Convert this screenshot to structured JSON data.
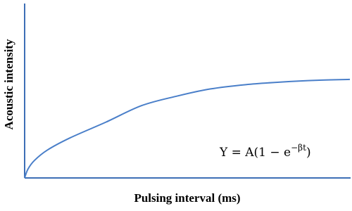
{
  "chart_data": {
    "type": "line",
    "x_label": "Pulsing interval (ms)",
    "y_label": "Acoustic intensity",
    "annotation": {
      "base": "Y = A(1 − e",
      "exponent": "−βt",
      "close": ")"
    },
    "x": [
      0,
      1,
      3,
      7,
      14,
      25,
      36,
      47,
      57,
      68,
      79,
      90,
      100
    ],
    "values": [
      0,
      5,
      10,
      16,
      23,
      32,
      41.5,
      47,
      51,
      53.5,
      55,
      56,
      56.5
    ],
    "color": "#4a7fc9",
    "xlim": [
      0,
      100
    ],
    "ylim": [
      0,
      100
    ],
    "grid": false
  }
}
